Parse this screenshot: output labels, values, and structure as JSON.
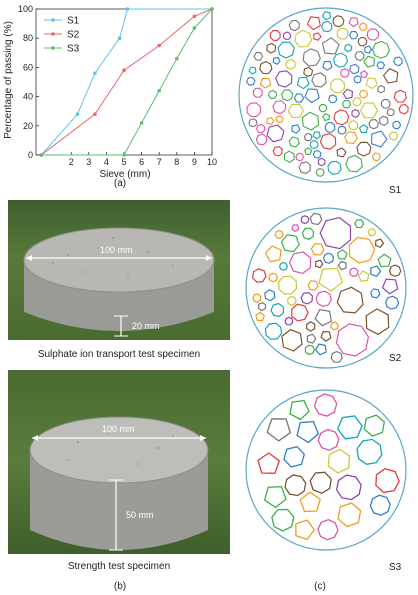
{
  "panel_labels": {
    "a": "(a)",
    "b": "(b)",
    "c": "(c)"
  },
  "specimens": {
    "top": {
      "caption": "Sulphate ion transport test specimen",
      "diameter": "100 mm",
      "height": "20 mm"
    },
    "bottom": {
      "caption": "Strength test specimen",
      "diameter": "100 mm",
      "height": "50 mm"
    }
  },
  "circles": {
    "s1": "S1",
    "s2": "S2",
    "s3": "S3"
  },
  "colors": {
    "circle_outline": "#5aa6c8",
    "s1": "#5bc6e8",
    "s2": "#e8666b",
    "s3": "#5cbf73",
    "particles": [
      "#e33b3b",
      "#2f7fd1",
      "#3cb04a",
      "#8e44ad",
      "#f29b1d",
      "#e052a8",
      "#16a3b8",
      "#7a5230",
      "#777777",
      "#c9c935"
    ]
  },
  "chart_data": {
    "type": "line",
    "xlabel": "Sieve (mm)",
    "ylabel": "Percentage of passing (%)",
    "xlim": [
      0,
      10
    ],
    "ylim": [
      0,
      100
    ],
    "x_ticks": [
      2,
      3,
      4,
      5,
      6,
      7,
      8,
      9,
      10
    ],
    "y_ticks": [
      0,
      20,
      40,
      60,
      80,
      100
    ],
    "legend_position": "top-left",
    "series": [
      {
        "name": "S1",
        "color": "#5bc6e8",
        "x": [
          0.3,
          2.36,
          3.35,
          4.75,
          5.2,
          10
        ],
        "y": [
          0,
          28,
          56,
          80,
          100,
          100
        ]
      },
      {
        "name": "S2",
        "color": "#e8666b",
        "x": [
          0.3,
          3.35,
          5.0,
          7.0,
          9.0,
          10
        ],
        "y": [
          0,
          28,
          58,
          75,
          95,
          100
        ]
      },
      {
        "name": "S3",
        "color": "#5cbf73",
        "x": [
          0.3,
          5.0,
          6.0,
          7.0,
          8.0,
          9.0,
          10
        ],
        "y": [
          0,
          0,
          22,
          44,
          66,
          87,
          100
        ]
      }
    ]
  }
}
